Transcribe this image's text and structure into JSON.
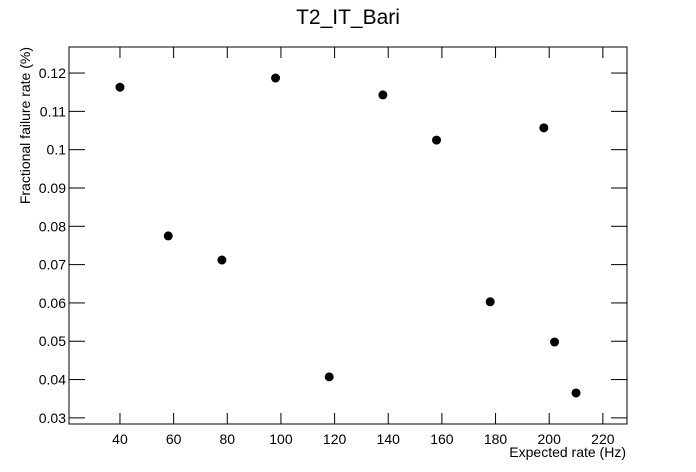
{
  "chart_data": {
    "type": "scatter",
    "title": "T2_IT_Bari",
    "x_label": "Expected rate (Hz)",
    "y_label": "Fractional failure rate (%)",
    "x": [
      40,
      58,
      78,
      98,
      118,
      138,
      158,
      178,
      198,
      202,
      210
    ],
    "values": [
      0.1163,
      0.0775,
      0.0712,
      0.1187,
      0.0407,
      0.1143,
      0.1025,
      0.0603,
      0.1057,
      0.0498,
      0.0365
    ],
    "color": "#000000",
    "xlim": [
      21,
      229
    ],
    "xticks": [
      40,
      60,
      80,
      100,
      120,
      140,
      160,
      180,
      200,
      220
    ],
    "ylim": [
      0.0284,
      0.1268
    ],
    "yticks": [
      0.03,
      0.04,
      0.05,
      0.06,
      0.07,
      0.08,
      0.09,
      0.1,
      0.11,
      0.12
    ]
  }
}
